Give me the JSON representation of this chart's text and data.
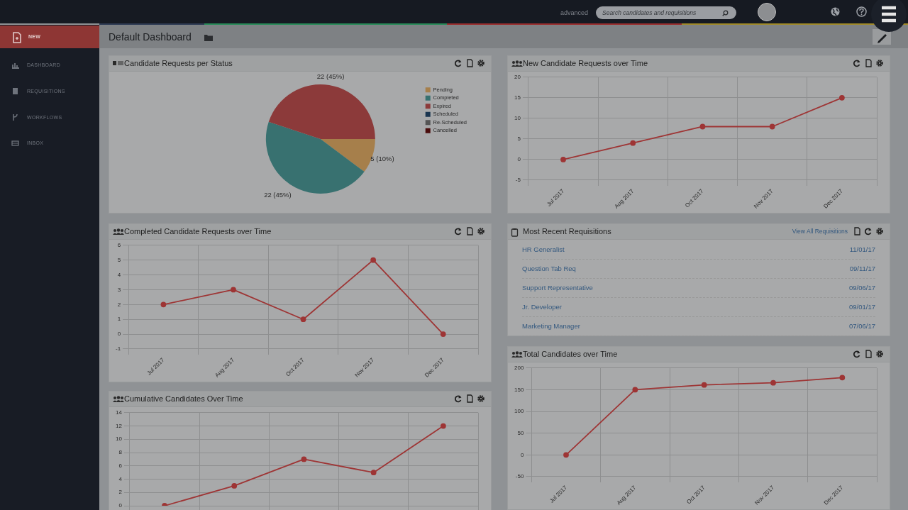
{
  "chart_data": [
    {
      "type": "other",
      "title": "Default Dashboard",
      "annotations": [
        "advanced",
        "Search candidates and requisitions",
        "NEW",
        "DASHBOARD",
        "REQUISITIONS",
        "WORKFLOWS",
        "INBOX"
      ]
    },
    {
      "type": "pie",
      "title": "Candidate Requests per Status",
      "categories": [
        "Pending",
        "Completed",
        "Expired",
        "Scheduled",
        "Re-Scheduled",
        "Cancelled"
      ],
      "values": [
        5,
        22,
        22,
        0,
        0,
        0
      ],
      "colors": [
        "#a67f4b",
        "#387170",
        "#8c3a3a",
        "#1a3550",
        "#555555",
        "#4a0c0c"
      ],
      "value_labels": [
        "5 (10%)",
        "22 (45%)",
        "22 (45%)",
        null,
        null,
        null
      ],
      "legend": "top right"
    },
    {
      "type": "line",
      "title": "New Candidate Requests over Time",
      "categories": [
        "Jul 2017",
        "Aug 2017",
        "Oct 2017",
        "Nov 2017",
        "Dec 2017"
      ],
      "values": [
        0,
        4,
        8,
        8,
        15
      ],
      "color": "#9e3535",
      "ylim": [
        -5,
        20
      ],
      "yticks": [
        -5,
        0,
        5,
        10,
        15,
        20
      ],
      "grid": true,
      "marker": "circle",
      "legend": false
    },
    {
      "type": "line",
      "title": "Completed Candidate Requests over Time",
      "categories": [
        "Jul 2017",
        "Aug 2017",
        "Oct 2017",
        "Nov 2017",
        "Dec 2017"
      ],
      "values": [
        2,
        3,
        1,
        5,
        0
      ],
      "color": "#9e3535",
      "ylim": [
        -1,
        6
      ],
      "yticks": [
        -1,
        0,
        1,
        2,
        3,
        4,
        5,
        6
      ],
      "grid": true,
      "marker": "circle",
      "legend": false
    },
    {
      "type": "other",
      "title": "Most Recent Requisitions",
      "annotations": [
        "View All Requisitions",
        "HR Generalist",
        "11/01/17",
        "Question Tab Req",
        "09/11/17",
        "Support Representative",
        "09/06/17",
        "Jr. Developer",
        "09/01/17",
        "Marketing Manager",
        "07/06/17"
      ]
    },
    {
      "type": "line",
      "title": "Total Candidates over Time",
      "categories": [
        "Jul 2017",
        "Aug 2017",
        "Oct 2017",
        "Nov 2017",
        "Dec 2017"
      ],
      "values": [
        0,
        150,
        161,
        166,
        178
      ],
      "color": "#9e3535",
      "ylim": [
        -50,
        200
      ],
      "yticks": [
        -50,
        0,
        50,
        100,
        150,
        200
      ],
      "grid": true,
      "marker": "circle",
      "legend": false
    },
    {
      "type": "line",
      "title": "Cumulative Candidates Over Time",
      "categories": [
        null,
        null,
        null,
        null,
        null
      ],
      "values": [
        0,
        3,
        7,
        5,
        12
      ],
      "color": "#9e3535",
      "ylim": [
        0,
        14
      ],
      "yticks": [
        0,
        2,
        4,
        6,
        8,
        10,
        12,
        14
      ],
      "grid": true,
      "marker": "circle",
      "legend": false,
      "tick_labels": "y"
    }
  ]
}
